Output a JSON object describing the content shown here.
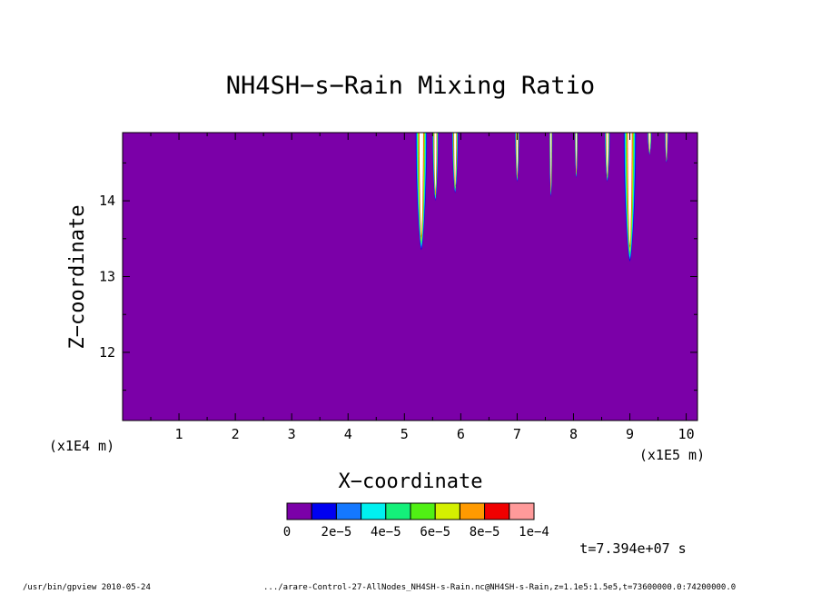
{
  "chart_data": {
    "type": "heatmap",
    "title": "NH4SH−s−Rain Mixing Ratio",
    "xlabel": "X−coordinate",
    "ylabel": "Z−coordinate",
    "x_scale_label": "(x1E5 m)",
    "y_scale_label": "(x1E4 m)",
    "xlim": [
      0,
      10.2
    ],
    "ylim": [
      11.1,
      14.9
    ],
    "x_ticks": [
      "1",
      "2",
      "3",
      "4",
      "5",
      "6",
      "7",
      "8",
      "9",
      "10"
    ],
    "y_ticks": [
      "12",
      "13",
      "14"
    ],
    "background_color": "#7b00a8",
    "colorbar": {
      "colors": [
        "#7b00a8",
        "#0000f0",
        "#1478ff",
        "#00f0f0",
        "#14f07a",
        "#50f014",
        "#d4f000",
        "#ff9a00",
        "#f00000",
        "#ff9a9a"
      ],
      "labels": [
        "0",
        "2e−5",
        "4e−5",
        "6e−5",
        "8e−5",
        "1e−4"
      ]
    },
    "plumes": [
      {
        "x_center": 5.3,
        "top": 14.9,
        "bottom": 13.35,
        "width": 0.22
      },
      {
        "x_center": 5.55,
        "top": 14.9,
        "bottom": 14.0,
        "width": 0.12
      },
      {
        "x_center": 5.9,
        "top": 14.9,
        "bottom": 14.1,
        "width": 0.12
      },
      {
        "x_center": 7.0,
        "top": 14.9,
        "bottom": 14.25,
        "width": 0.08
      },
      {
        "x_center": 7.6,
        "top": 14.9,
        "bottom": 14.05,
        "width": 0.06
      },
      {
        "x_center": 8.05,
        "top": 14.9,
        "bottom": 14.3,
        "width": 0.06
      },
      {
        "x_center": 8.6,
        "top": 14.9,
        "bottom": 14.25,
        "width": 0.1
      },
      {
        "x_center": 9.0,
        "top": 14.9,
        "bottom": 13.2,
        "width": 0.24
      },
      {
        "x_center": 9.35,
        "top": 14.9,
        "bottom": 14.6,
        "width": 0.08
      },
      {
        "x_center": 9.65,
        "top": 14.9,
        "bottom": 14.5,
        "width": 0.06
      }
    ],
    "time_label": "t=7.394e+07 s"
  },
  "footer": {
    "left": "/usr/bin/gpview  2010-05-24",
    "right": ".../arare-Control-27-AllNodes_NH4SH-s-Rain.nc@NH4SH-s-Rain,z=1.1e5:1.5e5,t=73600000.0:74200000.0"
  }
}
